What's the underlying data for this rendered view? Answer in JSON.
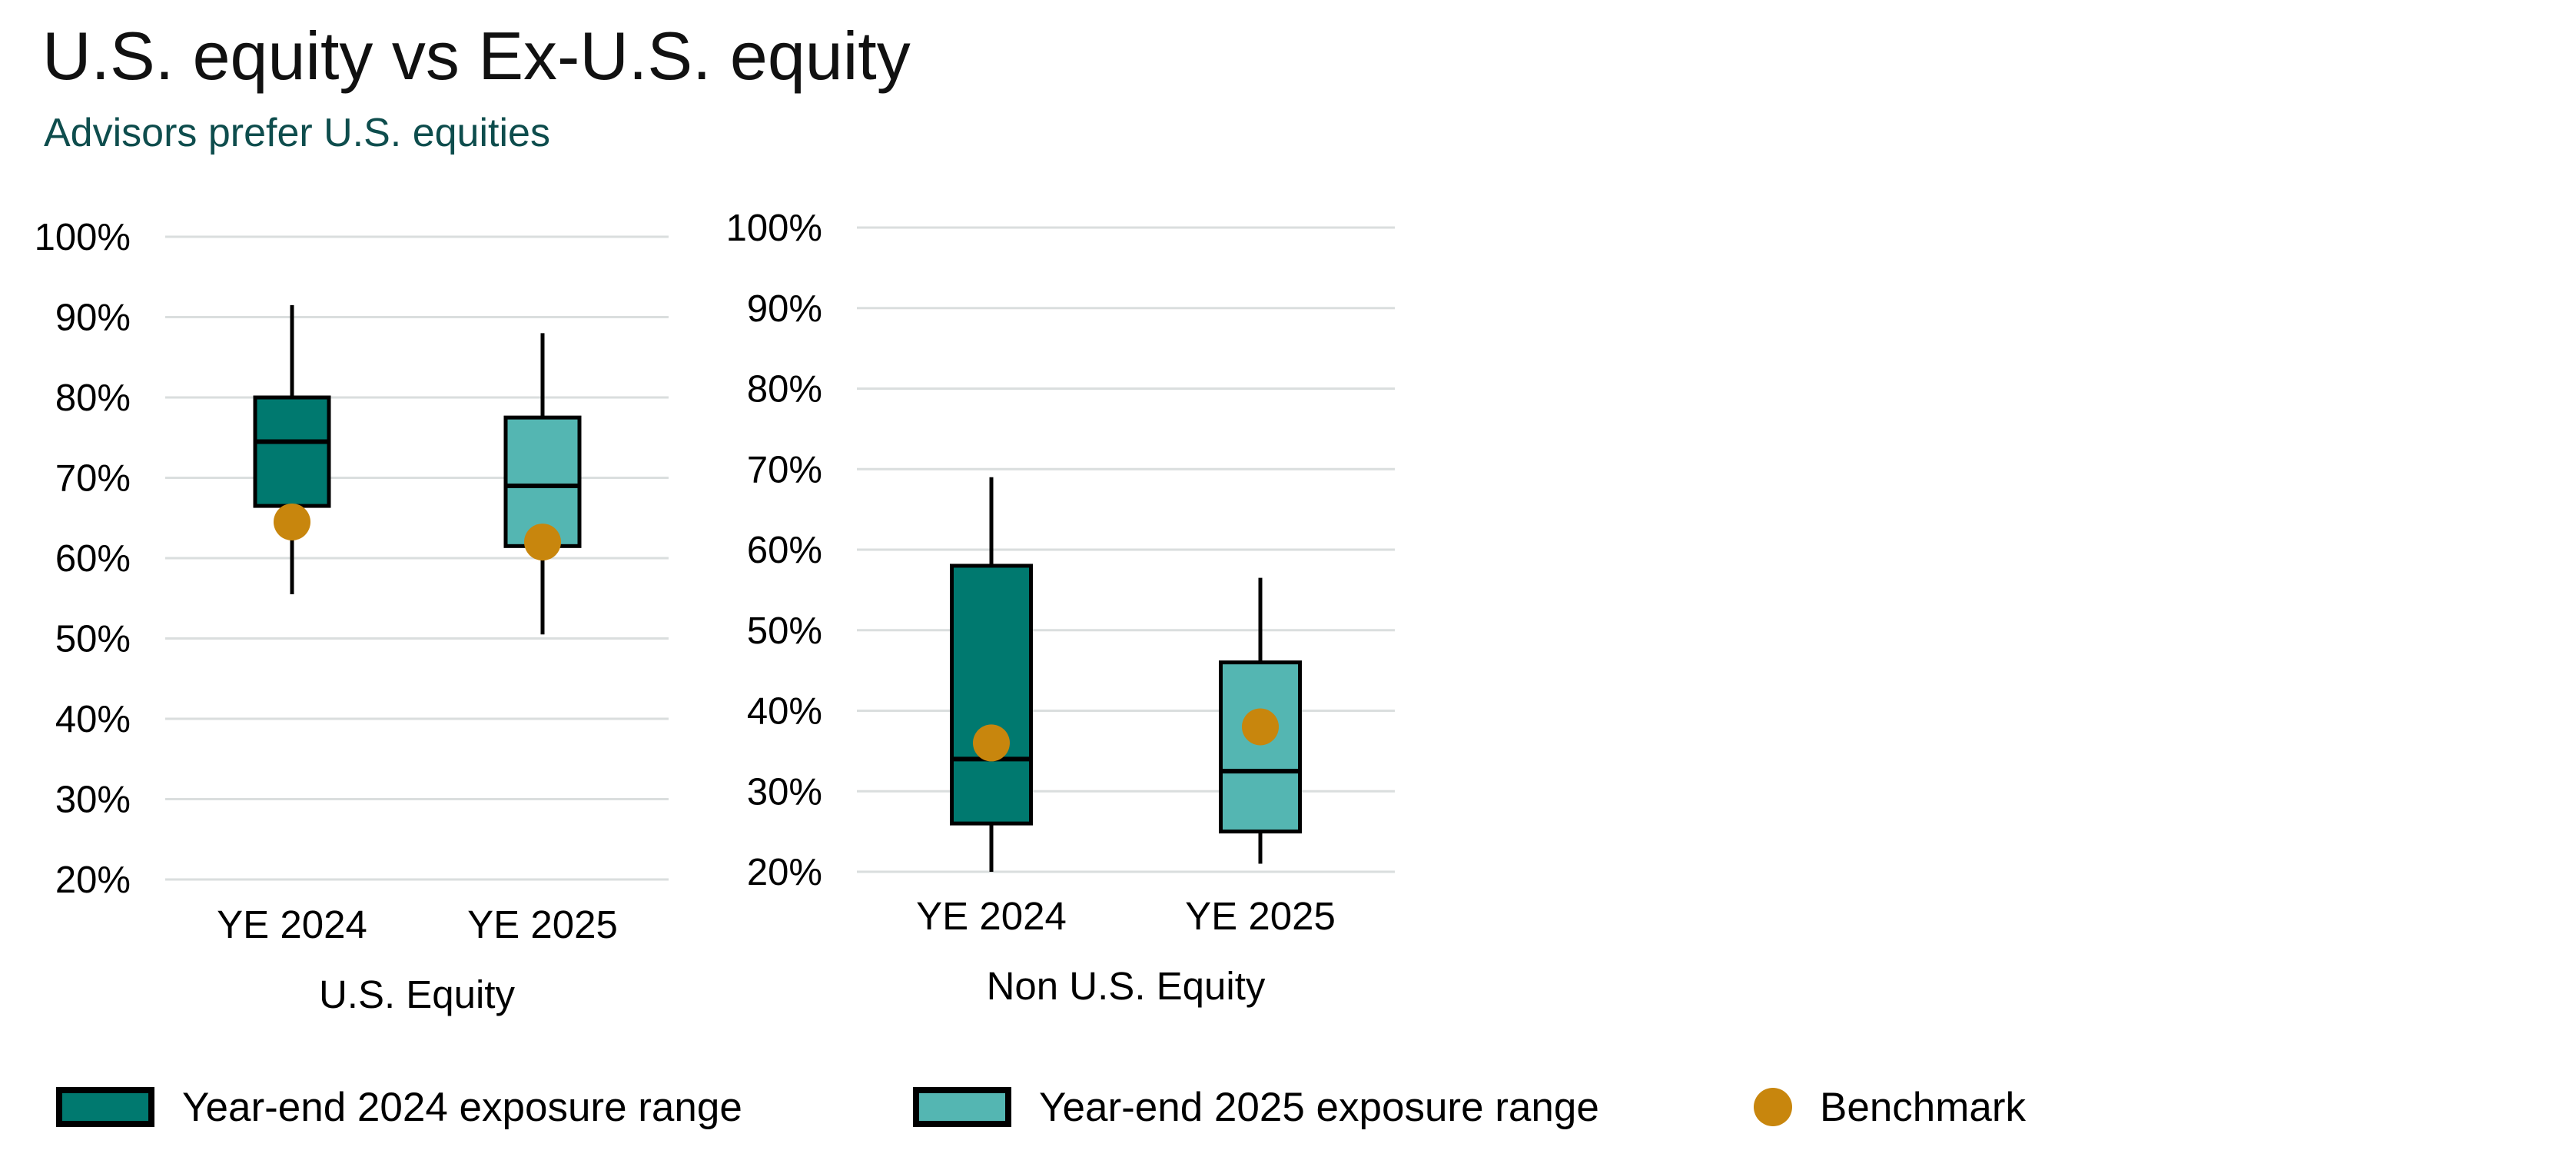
{
  "header": {
    "title": "U.S. equity vs Ex-U.S. equity",
    "subtitle": "Advisors prefer U.S. equities"
  },
  "colors": {
    "ye2024_box": "#00796F",
    "ye2025_box": "#54B6B2",
    "benchmark": "#C8860D",
    "gridline": "#DADEDE",
    "box_outline": "#000000",
    "subtitle_text": "#0E4D4D",
    "title_text": "#111111",
    "axis_text": "#000000"
  },
  "chart_data": [
    {
      "type": "boxplot",
      "xlabel": "U.S. Equity",
      "categories": [
        "YE 2024",
        "YE 2025"
      ],
      "ylim": [
        20,
        100
      ],
      "y_ticks": [
        100,
        90,
        80,
        70,
        60,
        50,
        40,
        30,
        20
      ],
      "y_tick_labels": [
        "100%",
        "90%",
        "80%",
        "70%",
        "60%",
        "50%",
        "40%",
        "30%",
        "20%"
      ],
      "grid": true,
      "series": [
        {
          "name": "Year-end 2024 exposure range",
          "category": "YE 2024",
          "color_key": "ye2024_box",
          "whisker_high": 91.5,
          "q3": 80,
          "median": 74.5,
          "q1": 66.5,
          "whisker_low": 55.5,
          "benchmark": 64.5
        },
        {
          "name": "Year-end 2025 exposure range",
          "category": "YE 2025",
          "color_key": "ye2025_box",
          "whisker_high": 88,
          "q3": 77.5,
          "median": 69,
          "q1": 61.5,
          "whisker_low": 50.5,
          "benchmark": 62
        }
      ]
    },
    {
      "type": "boxplot",
      "xlabel": "Non U.S. Equity",
      "categories": [
        "YE 2024",
        "YE 2025"
      ],
      "ylim": [
        20,
        100
      ],
      "y_ticks": [
        100,
        90,
        80,
        70,
        60,
        50,
        40,
        30,
        20
      ],
      "y_tick_labels": [
        "100%",
        "90%",
        "80%",
        "70%",
        "60%",
        "50%",
        "40%",
        "30%",
        "20%"
      ],
      "grid": true,
      "series": [
        {
          "name": "Year-end 2024 exposure range",
          "category": "YE 2024",
          "color_key": "ye2024_box",
          "whisker_high": 69,
          "q3": 58,
          "median": 34,
          "q1": 26,
          "whisker_low": 20,
          "benchmark": 36
        },
        {
          "name": "Year-end 2025 exposure range",
          "category": "YE 2025",
          "color_key": "ye2025_box",
          "whisker_high": 56.5,
          "q3": 46,
          "median": 32.5,
          "q1": 25,
          "whisker_low": 21,
          "benchmark": 38
        }
      ]
    }
  ],
  "legend": {
    "items": [
      {
        "marker": "box",
        "color_key": "ye2024_box",
        "label": "Year-end 2024 exposure range"
      },
      {
        "marker": "box",
        "color_key": "ye2025_box",
        "label": "Year-end 2025 exposure range"
      },
      {
        "marker": "dot",
        "color_key": "benchmark",
        "label": "Benchmark"
      }
    ]
  }
}
